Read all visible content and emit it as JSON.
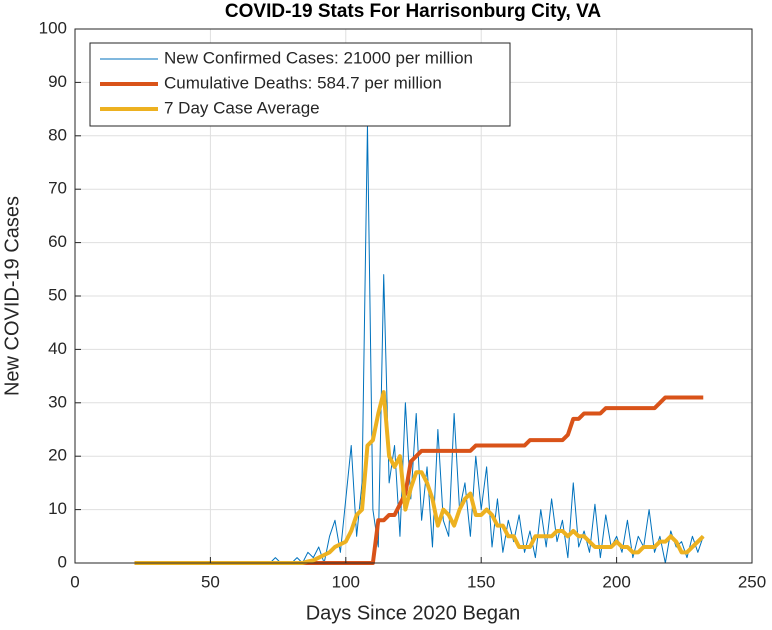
{
  "chart_data": {
    "type": "line",
    "title": "COVID-19 Stats For Harrisonburg City, VA",
    "x_label": "Days Since 2020 Began",
    "y_label": "New COVID-19 Cases",
    "xlim": [
      0,
      250
    ],
    "xticks": [
      0,
      50,
      100,
      150,
      200,
      250
    ],
    "ylim": [
      0,
      100
    ],
    "yticks": [
      0,
      10,
      20,
      30,
      40,
      50,
      60,
      70,
      80,
      90,
      100
    ],
    "grid": true,
    "legend": "upper-left",
    "x": [
      22,
      70,
      72,
      74,
      76,
      78,
      80,
      82,
      84,
      86,
      88,
      90,
      92,
      94,
      96,
      98,
      100,
      102,
      104,
      106,
      108,
      110,
      112,
      114,
      116,
      118,
      120,
      122,
      124,
      126,
      128,
      130,
      132,
      134,
      136,
      138,
      140,
      142,
      144,
      146,
      148,
      150,
      152,
      154,
      156,
      158,
      160,
      162,
      164,
      166,
      168,
      170,
      172,
      174,
      176,
      178,
      180,
      182,
      184,
      186,
      188,
      190,
      192,
      194,
      196,
      198,
      200,
      202,
      204,
      206,
      208,
      210,
      212,
      214,
      216,
      218,
      220,
      222,
      224,
      226,
      228,
      230,
      232
    ],
    "series": [
      {
        "name": "New Confirmed Cases: 21000 per million",
        "color": "#0072bd",
        "width": 1,
        "values": [
          0,
          0,
          0,
          1,
          0,
          0,
          0,
          1,
          0,
          2,
          1,
          3,
          0,
          5,
          8,
          2,
          12,
          22,
          5,
          15,
          82,
          10,
          3,
          54,
          15,
          22,
          5,
          30,
          12,
          28,
          8,
          18,
          3,
          25,
          8,
          5,
          28,
          10,
          15,
          5,
          20,
          10,
          18,
          3,
          12,
          2,
          8,
          4,
          9,
          2,
          6,
          1,
          10,
          3,
          12,
          4,
          8,
          1,
          15,
          3,
          6,
          2,
          11,
          1,
          9,
          3,
          5,
          2,
          8,
          1,
          5,
          3,
          10,
          2,
          5,
          0,
          6,
          3,
          4,
          1,
          5,
          2,
          5
        ]
      },
      {
        "name": "Cumulative Deaths: 584.7 per million",
        "color": "#d95319",
        "width": 4,
        "values": [
          0,
          0,
          0,
          0,
          0,
          0,
          0,
          0,
          0,
          0,
          0,
          0,
          0,
          0,
          0,
          0,
          0,
          0,
          0,
          0,
          0,
          0,
          8,
          8,
          9,
          9,
          11,
          13,
          19,
          20,
          21,
          21,
          21,
          21,
          21,
          21,
          21,
          21,
          21,
          21,
          22,
          22,
          22,
          22,
          22,
          22,
          22,
          22,
          22,
          22,
          23,
          23,
          23,
          23,
          23,
          23,
          23,
          24,
          27,
          27,
          28,
          28,
          28,
          28,
          29,
          29,
          29,
          29,
          29,
          29,
          29,
          29,
          29,
          29,
          30,
          31,
          31,
          31,
          31,
          31,
          31,
          31,
          31
        ]
      },
      {
        "name": "7 Day Case Average",
        "color": "#edb120",
        "width": 4,
        "values": [
          0,
          0,
          0,
          0,
          0,
          0,
          0,
          0,
          0,
          0.3,
          0.5,
          1,
          1.5,
          2,
          3,
          3.5,
          4,
          6,
          9,
          10,
          22,
          23,
          28,
          32,
          20,
          18,
          20,
          10,
          14,
          17,
          17,
          15,
          12,
          7,
          10,
          9,
          7,
          10,
          12,
          13,
          9,
          9,
          10,
          9,
          7,
          7,
          5,
          5,
          3,
          3,
          3,
          5,
          5,
          5,
          5,
          6,
          6,
          5,
          6,
          5,
          5,
          4,
          3,
          3,
          3,
          3,
          4,
          3,
          3,
          2,
          2,
          3,
          3,
          3,
          4,
          4,
          5,
          4,
          2,
          2,
          3,
          4,
          5
        ]
      }
    ]
  }
}
